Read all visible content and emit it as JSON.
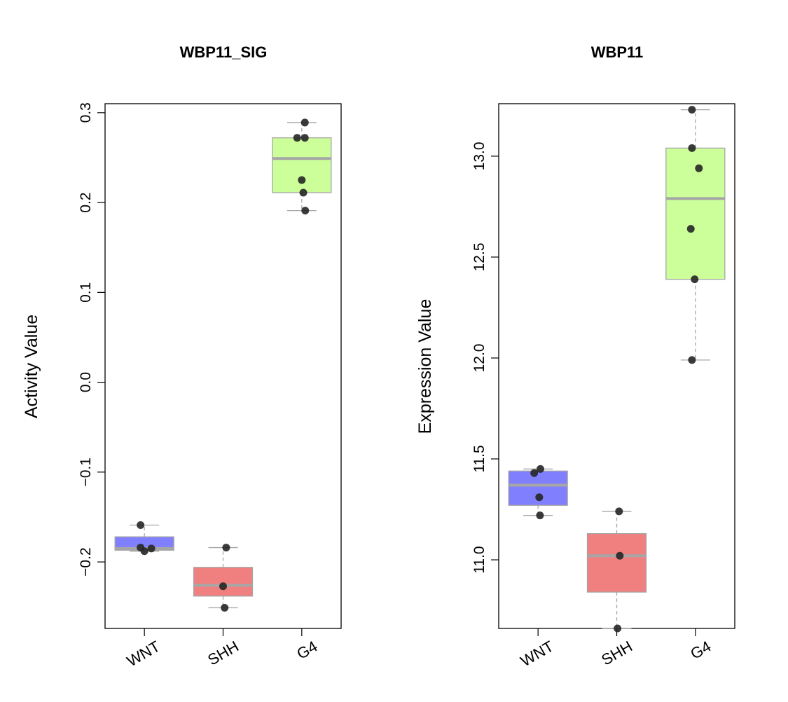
{
  "chart_data": [
    {
      "type": "box",
      "title": "WBP11_SIG",
      "ylabel": "Activity Value",
      "xlabel": "",
      "categories": [
        "WNT",
        "SHH",
        "G4"
      ],
      "ylim": [
        -0.274,
        0.31
      ],
      "yticks": [
        -0.2,
        -0.1,
        0.0,
        0.1,
        0.2,
        0.3
      ],
      "ytick_labels": [
        "−0.2",
        "−0.1",
        "0.0",
        "0.1",
        "0.2",
        "0.3"
      ],
      "colors": [
        "#8080ff",
        "#f08080",
        "#ccff99"
      ],
      "box_border": "#a6a6a6",
      "point_color": "#262626",
      "groups": [
        {
          "name": "WNT",
          "whisker_low": -0.188,
          "q1": -0.187,
          "median": -0.185,
          "q3": -0.172,
          "whisker_high": -0.159,
          "points": [
            [
              -0.1,
              -0.159
            ],
            [
              -0.1,
              -0.184
            ],
            [
              0.0,
              -0.188
            ],
            [
              0.18,
              -0.185
            ]
          ]
        },
        {
          "name": "SHH",
          "whisker_low": -0.251,
          "q1": -0.238,
          "median": -0.226,
          "q3": -0.206,
          "whisker_high": -0.184,
          "points": [
            [
              0.08,
              -0.184
            ],
            [
              0.0,
              -0.227
            ],
            [
              0.04,
              -0.251
            ]
          ]
        },
        {
          "name": "G4",
          "whisker_low": 0.191,
          "q1": 0.211,
          "median": 0.249,
          "q3": 0.272,
          "whisker_high": 0.289,
          "points": [
            [
              0.08,
              0.289
            ],
            [
              -0.12,
              0.272
            ],
            [
              0.08,
              0.272
            ],
            [
              0.0,
              0.225
            ],
            [
              0.04,
              0.211
            ],
            [
              0.09,
              0.191
            ]
          ]
        }
      ]
    },
    {
      "type": "box",
      "title": "WBP11",
      "ylabel": "Expression Value",
      "xlabel": "",
      "categories": [
        "WNT",
        "SHH",
        "G4"
      ],
      "ylim": [
        10.66,
        13.26
      ],
      "yticks": [
        11.0,
        11.5,
        12.0,
        12.5,
        13.0
      ],
      "ytick_labels": [
        "11.0",
        "11.5",
        "12.0",
        "12.5",
        "13.0"
      ],
      "colors": [
        "#8080ff",
        "#f08080",
        "#ccff99"
      ],
      "box_border": "#a6a6a6",
      "point_color": "#262626",
      "groups": [
        {
          "name": "WNT",
          "whisker_low": 11.22,
          "q1": 11.27,
          "median": 11.37,
          "q3": 11.44,
          "whisker_high": 11.45,
          "points": [
            [
              0.06,
              11.45
            ],
            [
              -0.1,
              11.43
            ],
            [
              0.03,
              11.31
            ],
            [
              0.05,
              11.22
            ]
          ]
        },
        {
          "name": "SHH",
          "whisker_low": 10.66,
          "q1": 10.84,
          "median": 11.02,
          "q3": 11.13,
          "whisker_high": 11.24,
          "points": [
            [
              0.06,
              11.24
            ],
            [
              0.08,
              11.02
            ],
            [
              0.02,
              10.66
            ]
          ]
        },
        {
          "name": "G4",
          "whisker_low": 11.99,
          "q1": 12.39,
          "median": 12.79,
          "q3": 13.04,
          "whisker_high": 13.23,
          "points": [
            [
              -0.09,
              13.23
            ],
            [
              -0.09,
              13.04
            ],
            [
              0.09,
              12.94
            ],
            [
              -0.12,
              12.64
            ],
            [
              -0.02,
              12.39
            ],
            [
              -0.09,
              11.99
            ]
          ]
        }
      ]
    }
  ]
}
